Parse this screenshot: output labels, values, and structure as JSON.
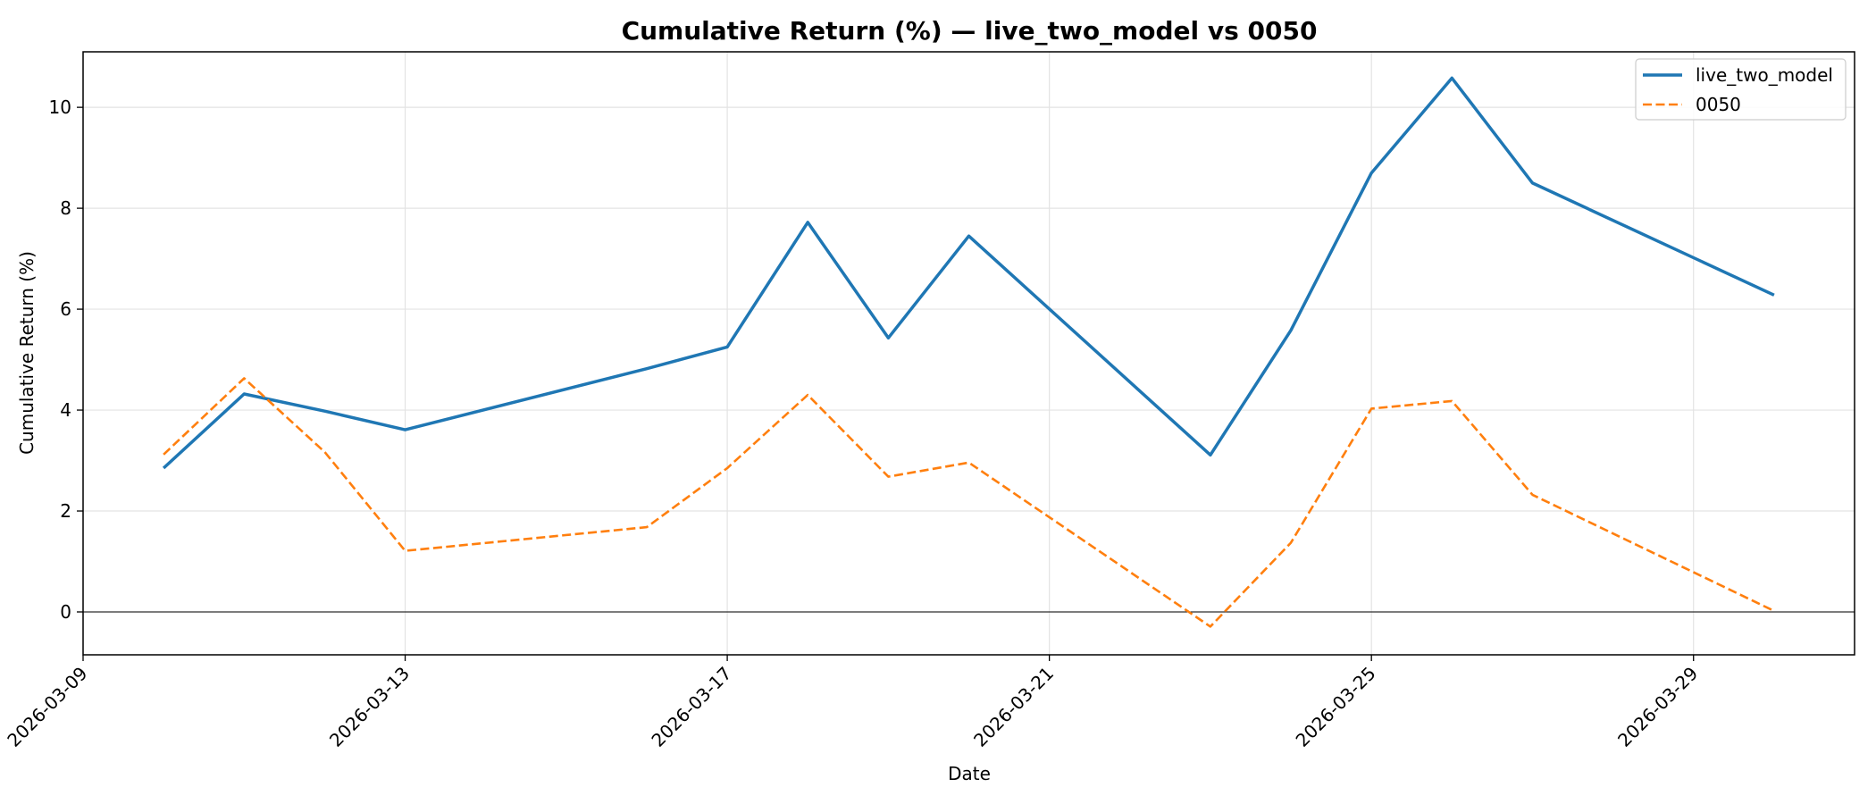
{
  "chart_data": {
    "type": "line",
    "title": "Cumulative Return (%) — live_two_model vs 0050",
    "xlabel": "Date",
    "ylabel": "Cumulative Return (%)",
    "x_ticks": [
      "2026-03-09",
      "2026-03-13",
      "2026-03-17",
      "2026-03-21",
      "2026-03-25",
      "2026-03-29"
    ],
    "y_ticks": [
      0,
      2,
      4,
      6,
      8,
      10
    ],
    "xlim": [
      "2026-03-09",
      "2026-03-31"
    ],
    "ylim": [
      -0.85,
      11.1
    ],
    "grid": true,
    "zero_line": true,
    "legend_position": "top-right",
    "series": [
      {
        "name": "live_two_model",
        "color": "#1f77b4",
        "style": "solid",
        "points": [
          [
            "2026-03-10",
            2.85
          ],
          [
            "2026-03-11",
            4.32
          ],
          [
            "2026-03-12",
            3.98
          ],
          [
            "2026-03-13",
            3.61
          ],
          [
            "2026-03-16",
            4.82
          ],
          [
            "2026-03-17",
            5.25
          ],
          [
            "2026-03-18",
            7.72
          ],
          [
            "2026-03-19",
            5.43
          ],
          [
            "2026-03-20",
            7.45
          ],
          [
            "2026-03-23",
            3.11
          ],
          [
            "2026-03-24",
            5.58
          ],
          [
            "2026-03-25",
            8.7
          ],
          [
            "2026-03-26",
            10.58
          ],
          [
            "2026-03-27",
            8.5
          ],
          [
            "2026-03-30",
            6.28
          ]
        ]
      },
      {
        "name": "0050",
        "color": "#ff7f0e",
        "style": "dashed",
        "points": [
          [
            "2026-03-10",
            3.12
          ],
          [
            "2026-03-11",
            4.63
          ],
          [
            "2026-03-12",
            3.17
          ],
          [
            "2026-03-13",
            1.21
          ],
          [
            "2026-03-16",
            1.68
          ],
          [
            "2026-03-17",
            2.85
          ],
          [
            "2026-03-18",
            4.3
          ],
          [
            "2026-03-19",
            2.68
          ],
          [
            "2026-03-20",
            2.96
          ],
          [
            "2026-03-23",
            -0.29
          ],
          [
            "2026-03-24",
            1.37
          ],
          [
            "2026-03-25",
            4.03
          ],
          [
            "2026-03-26",
            4.18
          ],
          [
            "2026-03-27",
            2.32
          ],
          [
            "2026-03-30",
            0.02
          ]
        ]
      }
    ]
  }
}
